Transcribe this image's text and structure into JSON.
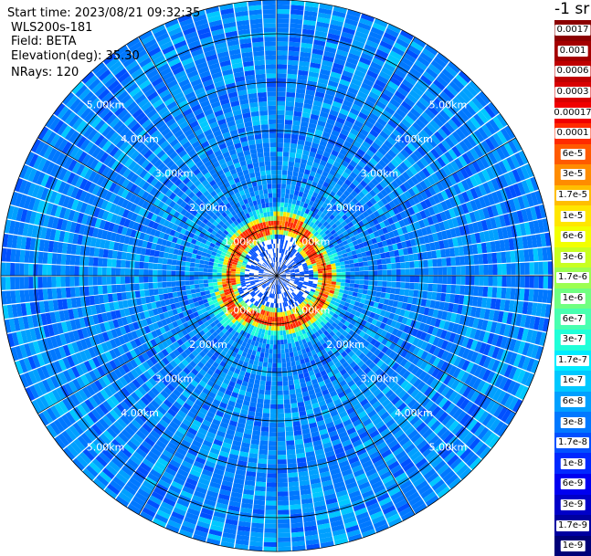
{
  "header": {
    "start_time": "Start time: 2023/08/21 09:32:35",
    "instrument": "WLS200s-181",
    "field": "Field: BETA",
    "elevation": "Elevation(deg): 35.30",
    "nrays": "NRays: 120"
  },
  "colorbar": {
    "units_label": "-1 sr",
    "entries": [
      {
        "label": "0.0017",
        "color": "#8b0000"
      },
      {
        "label": "0.001",
        "color": "#a40000"
      },
      {
        "label": "0.0006",
        "color": "#bf0000"
      },
      {
        "label": "0.0003",
        "color": "#d80000"
      },
      {
        "label": "0.00017",
        "color": "#f00000"
      },
      {
        "label": "0.0001",
        "color": "#ff2a00"
      },
      {
        "label": "6e-5",
        "color": "#ff5a00"
      },
      {
        "label": "3e-5",
        "color": "#ff8c00"
      },
      {
        "label": "1.7e-5",
        "color": "#ffbe00"
      },
      {
        "label": "1e-5",
        "color": "#ffe600"
      },
      {
        "label": "6e-6",
        "color": "#f2ff00"
      },
      {
        "label": "3e-6",
        "color": "#c8ff20"
      },
      {
        "label": "1.7e-6",
        "color": "#9cff50"
      },
      {
        "label": "1e-6",
        "color": "#70ff80"
      },
      {
        "label": "6e-7",
        "color": "#48ffb0"
      },
      {
        "label": "3e-7",
        "color": "#20ffd8"
      },
      {
        "label": "1.7e-7",
        "color": "#00ecff"
      },
      {
        "label": "1e-7",
        "color": "#00c8ff"
      },
      {
        "label": "6e-8",
        "color": "#00a0ff"
      },
      {
        "label": "3e-8",
        "color": "#0078ff"
      },
      {
        "label": "1.7e-8",
        "color": "#0050ff"
      },
      {
        "label": "1e-8",
        "color": "#0028ff"
      },
      {
        "label": "6e-9",
        "color": "#0000f0"
      },
      {
        "label": "3e-9",
        "color": "#0000c8"
      },
      {
        "label": "1.7e-9",
        "color": "#0000a0"
      },
      {
        "label": "1e-9",
        "color": "#000078"
      }
    ]
  },
  "chart_data": {
    "type": "heatmap",
    "projection": "polar PPI",
    "ring_labels": [
      "1.00km",
      "2.00km",
      "3.00km",
      "4.00km",
      "5.00km"
    ],
    "ring_ranges_km": [
      1,
      2,
      3,
      4,
      5
    ],
    "max_range_km": 5.7,
    "grid": true
  }
}
